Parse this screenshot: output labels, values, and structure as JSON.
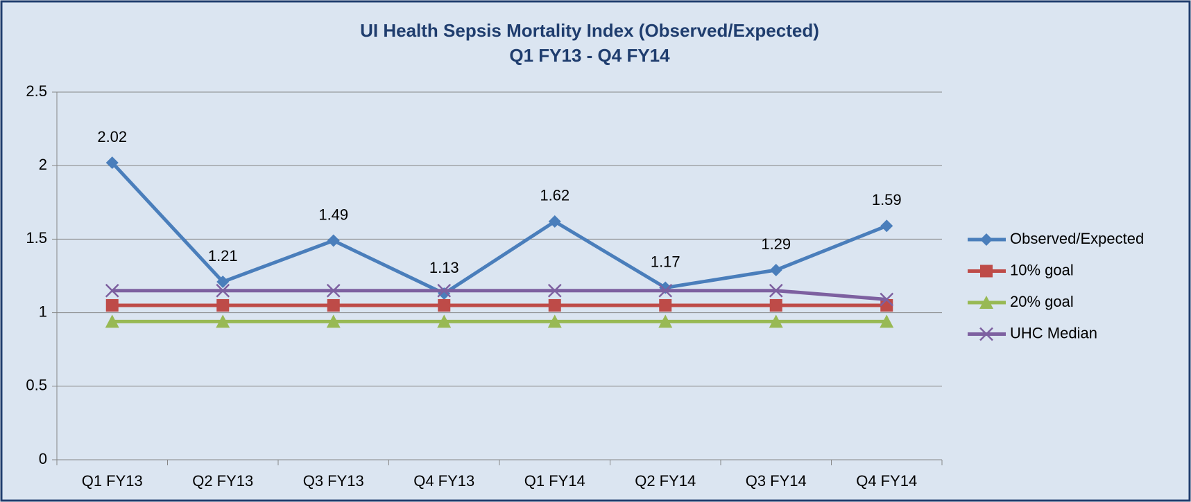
{
  "chart_data": {
    "type": "line",
    "title": "UI Health Sepsis Mortality Index (Observed/Expected)",
    "subtitle": "Q1 FY13 - Q4 FY14",
    "categories": [
      "Q1 FY13",
      "Q2 FY13",
      "Q3 FY13",
      "Q4 FY13",
      "Q1 FY14",
      "Q2 FY14",
      "Q3 FY14",
      "Q4 FY14"
    ],
    "series": [
      {
        "name": "Observed/Expected",
        "color": "#4a7ebb",
        "marker": "diamond",
        "data_labels": true,
        "values": [
          2.02,
          1.21,
          1.49,
          1.13,
          1.62,
          1.17,
          1.29,
          1.59
        ]
      },
      {
        "name": "10% goal",
        "color": "#be4b48",
        "marker": "square",
        "values": [
          1.05,
          1.05,
          1.05,
          1.05,
          1.05,
          1.05,
          1.05,
          1.05
        ]
      },
      {
        "name": "20% goal",
        "color": "#98b954",
        "marker": "triangle",
        "values": [
          0.94,
          0.94,
          0.94,
          0.94,
          0.94,
          0.94,
          0.94,
          0.94
        ]
      },
      {
        "name": "UHC Median",
        "color": "#7d60a0",
        "marker": "x",
        "values": [
          1.15,
          1.15,
          1.15,
          1.15,
          1.15,
          1.15,
          1.15,
          1.09
        ]
      }
    ],
    "ylim": [
      0,
      2.5
    ],
    "yticks": [
      0,
      0.5,
      1,
      1.5,
      2,
      2.5
    ],
    "grid": true,
    "legend": "right"
  }
}
